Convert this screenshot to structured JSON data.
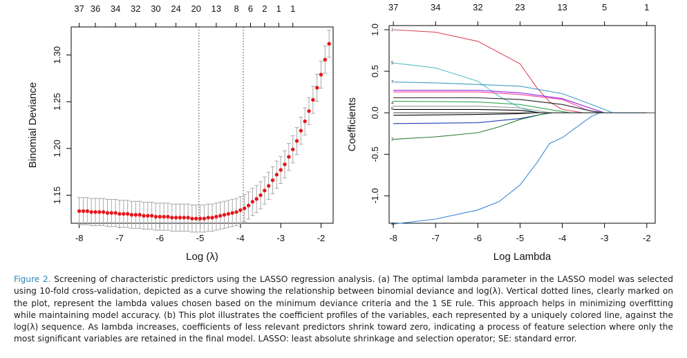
{
  "chart_data": [
    {
      "type": "scatter",
      "panel": "a",
      "xlabel": "Log (λ)",
      "ylabel": "Binomial Deviance",
      "xlim": [
        -8.2,
        -1.7
      ],
      "ylim": [
        1.12,
        1.33
      ],
      "xticks": [
        "-8",
        "-7",
        "-6",
        "-5",
        "-4",
        "-3",
        "-2"
      ],
      "yticks": [
        "1.15",
        "1.20",
        "1.25",
        "1.30"
      ],
      "top_ticks": [
        "37",
        "36",
        "34",
        "32",
        "30",
        "24",
        "20",
        "13",
        "8",
        "6",
        "2",
        "1",
        "1"
      ],
      "top_tick_x": [
        -8.0,
        -7.6,
        -7.1,
        -6.6,
        -6.1,
        -5.6,
        -5.1,
        -4.6,
        -4.1,
        -3.75,
        -3.4,
        -3.05,
        -2.7
      ],
      "vlines_x": [
        -5.03,
        -3.93
      ],
      "point_color": "#e8161c",
      "errorbar_color": "#a8a8a8",
      "note": "series: x = logLambda, y = mean deviance, e = error half-width",
      "series": [
        {
          "x": -8.0,
          "y": 1.133,
          "e": 0.0145
        },
        {
          "x": -7.9,
          "y": 1.133,
          "e": 0.0145
        },
        {
          "x": -7.8,
          "y": 1.133,
          "e": 0.0145
        },
        {
          "x": -7.7,
          "y": 1.132,
          "e": 0.0145
        },
        {
          "x": -7.6,
          "y": 1.132,
          "e": 0.0145
        },
        {
          "x": -7.5,
          "y": 1.132,
          "e": 0.0145
        },
        {
          "x": -7.4,
          "y": 1.132,
          "e": 0.0145
        },
        {
          "x": -7.3,
          "y": 1.131,
          "e": 0.0145
        },
        {
          "x": -7.2,
          "y": 1.131,
          "e": 0.0145
        },
        {
          "x": -7.1,
          "y": 1.131,
          "e": 0.0145
        },
        {
          "x": -7.0,
          "y": 1.13,
          "e": 0.0145
        },
        {
          "x": -6.9,
          "y": 1.13,
          "e": 0.0145
        },
        {
          "x": -6.8,
          "y": 1.13,
          "e": 0.0145
        },
        {
          "x": -6.7,
          "y": 1.129,
          "e": 0.0145
        },
        {
          "x": -6.6,
          "y": 1.129,
          "e": 0.0145
        },
        {
          "x": -6.5,
          "y": 1.129,
          "e": 0.0145
        },
        {
          "x": -6.4,
          "y": 1.128,
          "e": 0.0145
        },
        {
          "x": -6.3,
          "y": 1.128,
          "e": 0.0145
        },
        {
          "x": -6.2,
          "y": 1.128,
          "e": 0.0145
        },
        {
          "x": -6.1,
          "y": 1.127,
          "e": 0.0145
        },
        {
          "x": -6.0,
          "y": 1.127,
          "e": 0.0145
        },
        {
          "x": -5.9,
          "y": 1.127,
          "e": 0.0145
        },
        {
          "x": -5.8,
          "y": 1.127,
          "e": 0.0145
        },
        {
          "x": -5.7,
          "y": 1.126,
          "e": 0.0145
        },
        {
          "x": -5.6,
          "y": 1.126,
          "e": 0.0145
        },
        {
          "x": -5.5,
          "y": 1.126,
          "e": 0.0145
        },
        {
          "x": -5.4,
          "y": 1.126,
          "e": 0.0145
        },
        {
          "x": -5.3,
          "y": 1.126,
          "e": 0.0145
        },
        {
          "x": -5.2,
          "y": 1.125,
          "e": 0.0145
        },
        {
          "x": -5.1,
          "y": 1.125,
          "e": 0.0145
        },
        {
          "x": -5.0,
          "y": 1.125,
          "e": 0.0145
        },
        {
          "x": -4.9,
          "y": 1.125,
          "e": 0.0145
        },
        {
          "x": -4.8,
          "y": 1.126,
          "e": 0.0145
        },
        {
          "x": -4.7,
          "y": 1.126,
          "e": 0.0145
        },
        {
          "x": -4.6,
          "y": 1.127,
          "e": 0.0145
        },
        {
          "x": -4.5,
          "y": 1.128,
          "e": 0.0145
        },
        {
          "x": -4.4,
          "y": 1.129,
          "e": 0.0145
        },
        {
          "x": -4.3,
          "y": 1.13,
          "e": 0.0145
        },
        {
          "x": -4.2,
          "y": 1.131,
          "e": 0.0145
        },
        {
          "x": -4.1,
          "y": 1.132,
          "e": 0.0145
        },
        {
          "x": -4.0,
          "y": 1.134,
          "e": 0.0145
        },
        {
          "x": -3.9,
          "y": 1.136,
          "e": 0.0145
        },
        {
          "x": -3.8,
          "y": 1.139,
          "e": 0.0145
        },
        {
          "x": -3.7,
          "y": 1.143,
          "e": 0.0145
        },
        {
          "x": -3.6,
          "y": 1.146,
          "e": 0.0145
        },
        {
          "x": -3.5,
          "y": 1.15,
          "e": 0.0145
        },
        {
          "x": -3.4,
          "y": 1.155,
          "e": 0.0145
        },
        {
          "x": -3.3,
          "y": 1.16,
          "e": 0.0145
        },
        {
          "x": -3.2,
          "y": 1.166,
          "e": 0.0145
        },
        {
          "x": -3.1,
          "y": 1.172,
          "e": 0.0145
        },
        {
          "x": -3.0,
          "y": 1.177,
          "e": 0.0145
        },
        {
          "x": -2.9,
          "y": 1.183,
          "e": 0.0145
        },
        {
          "x": -2.8,
          "y": 1.191,
          "e": 0.0145
        },
        {
          "x": -2.7,
          "y": 1.199,
          "e": 0.0145
        },
        {
          "x": -2.6,
          "y": 1.208,
          "e": 0.0145
        },
        {
          "x": -2.5,
          "y": 1.219,
          "e": 0.0145
        },
        {
          "x": -2.4,
          "y": 1.229,
          "e": 0.0145
        },
        {
          "x": -2.3,
          "y": 1.24,
          "e": 0.0145
        },
        {
          "x": -2.2,
          "y": 1.252,
          "e": 0.0145
        },
        {
          "x": -2.1,
          "y": 1.265,
          "e": 0.0145
        },
        {
          "x": -2.0,
          "y": 1.279,
          "e": 0.0145
        },
        {
          "x": -1.9,
          "y": 1.295,
          "e": 0.0145
        },
        {
          "x": -1.8,
          "y": 1.312,
          "e": 0.0145
        }
      ]
    },
    {
      "type": "line",
      "panel": "b",
      "xlabel": "Log Lambda",
      "ylabel": "Coefficients",
      "xlim": [
        -8.1,
        -1.8
      ],
      "ylim": [
        -1.33,
        1.05
      ],
      "xticks": [
        "-8",
        "-7",
        "-6",
        "-5",
        "-4",
        "-3",
        "-2"
      ],
      "yticks": [
        "-1.0",
        "-0.5",
        "0.0",
        "0.5",
        "1.0"
      ],
      "top_ticks": [
        "37",
        "34",
        "32",
        "23",
        "13",
        "5",
        "1"
      ],
      "top_tick_x": [
        -8.0,
        -7.0,
        -6.0,
        -5.0,
        -4.0,
        -3.0,
        -2.0
      ],
      "side_labels": [
        "2",
        "5",
        "7",
        "4",
        "6",
        "3",
        "4"
      ],
      "series": [
        {
          "color": "#d94a5a",
          "points": [
            [
              -8.0,
              1.0
            ],
            [
              -7.0,
              0.97
            ],
            [
              -6.0,
              0.86
            ],
            [
              -5.0,
              0.59
            ],
            [
              -4.6,
              0.3
            ],
            [
              -4.3,
              0.13
            ],
            [
              -4.0,
              0.04
            ],
            [
              -3.5,
              0.0
            ],
            [
              -2.0,
              0.0
            ]
          ]
        },
        {
          "color": "#5ac0cc",
          "points": [
            [
              -8.0,
              0.6
            ],
            [
              -7.0,
              0.54
            ],
            [
              -6.0,
              0.38
            ],
            [
              -5.5,
              0.2
            ],
            [
              -5.0,
              0.06
            ],
            [
              -4.6,
              0.0
            ],
            [
              -2.0,
              0.0
            ]
          ]
        },
        {
          "color": "#3c9ec0",
          "points": [
            [
              -8.0,
              0.37
            ],
            [
              -7.0,
              0.36
            ],
            [
              -6.0,
              0.34
            ],
            [
              -5.0,
              0.32
            ],
            [
              -4.0,
              0.23
            ],
            [
              -3.2,
              0.08
            ],
            [
              -2.8,
              0.0
            ],
            [
              -2.0,
              0.0
            ]
          ]
        },
        {
          "color": "#8a2be2",
          "points": [
            [
              -8.0,
              0.27
            ],
            [
              -6.0,
              0.27
            ],
            [
              -5.0,
              0.24
            ],
            [
              -4.0,
              0.17
            ],
            [
              -3.3,
              0.05
            ],
            [
              -3.0,
              0.0
            ],
            [
              -2.0,
              0.0
            ]
          ]
        },
        {
          "color": "#ff3fa0",
          "points": [
            [
              -8.0,
              0.25
            ],
            [
              -6.0,
              0.25
            ],
            [
              -5.0,
              0.22
            ],
            [
              -4.0,
              0.16
            ],
            [
              -3.4,
              0.03
            ],
            [
              -3.1,
              0.0
            ],
            [
              -2.0,
              0.0
            ]
          ]
        },
        {
          "color": "#222222",
          "points": [
            [
              -8.0,
              0.18
            ],
            [
              -6.0,
              0.18
            ],
            [
              -5.0,
              0.16
            ],
            [
              -4.0,
              0.1
            ],
            [
              -3.3,
              0.02
            ],
            [
              -3.0,
              0.0
            ],
            [
              -2.0,
              0.0
            ]
          ]
        },
        {
          "color": "#2fa84f",
          "points": [
            [
              -8.0,
              0.14
            ],
            [
              -6.0,
              0.13
            ],
            [
              -5.0,
              0.1
            ],
            [
              -4.2,
              0.03
            ],
            [
              -3.8,
              0.0
            ],
            [
              -2.0,
              0.0
            ]
          ]
        },
        {
          "color": "#999999",
          "points": [
            [
              -8.0,
              0.08
            ],
            [
              -6.0,
              0.08
            ],
            [
              -5.0,
              0.06
            ],
            [
              -4.4,
              0.01
            ],
            [
              -4.2,
              0.0
            ],
            [
              -2.0,
              0.0
            ]
          ]
        },
        {
          "color": "#000000",
          "points": [
            [
              -8.0,
              0.04
            ],
            [
              -6.0,
              0.04
            ],
            [
              -5.0,
              0.03
            ],
            [
              -4.5,
              0.0
            ],
            [
              -2.0,
              0.0
            ]
          ]
        },
        {
          "color": "#000000",
          "points": [
            [
              -8.0,
              -0.03
            ],
            [
              -6.0,
              -0.02
            ],
            [
              -5.0,
              -0.01
            ],
            [
              -4.6,
              0.0
            ],
            [
              -2.0,
              0.0
            ]
          ]
        },
        {
          "color": "#1f3fae",
          "points": [
            [
              -8.0,
              -0.13
            ],
            [
              -6.0,
              -0.12
            ],
            [
              -5.0,
              -0.07
            ],
            [
              -4.3,
              0.0
            ],
            [
              -2.0,
              0.0
            ]
          ]
        },
        {
          "color": "#2e7d32",
          "points": [
            [
              -8.0,
              -0.32
            ],
            [
              -7.0,
              -0.29
            ],
            [
              -6.0,
              -0.24
            ],
            [
              -5.5,
              -0.17
            ],
            [
              -5.0,
              -0.08
            ],
            [
              -4.5,
              -0.02
            ],
            [
              -4.2,
              0.0
            ],
            [
              -2.0,
              0.0
            ]
          ]
        },
        {
          "color": "#3a89d6",
          "points": [
            [
              -8.0,
              -1.34
            ],
            [
              -7.0,
              -1.28
            ],
            [
              -6.0,
              -1.17
            ],
            [
              -5.5,
              -1.07
            ],
            [
              -5.0,
              -0.87
            ],
            [
              -4.6,
              -0.6
            ],
            [
              -4.3,
              -0.37
            ],
            [
              -4.0,
              -0.3
            ],
            [
              -3.6,
              -0.15
            ],
            [
              -3.3,
              -0.04
            ],
            [
              -3.1,
              0.0
            ],
            [
              -2.0,
              0.0
            ]
          ]
        },
        {
          "color": "#555555",
          "points": [
            [
              -8.0,
              0.0
            ],
            [
              -1.8,
              0.0
            ]
          ]
        }
      ]
    }
  ],
  "caption": {
    "label": "Figure 2.",
    "text": " Screening of characteristic predictors using the LASSO regression analysis. (a) The optimal lambda parameter in the LASSO model was selected using 10-fold cross-validation, depicted as a curve showing the relationship between binomial deviance and log(λ). Vertical dotted lines, clearly marked on the plot, represent the lambda values chosen based on the minimum deviance criteria and the 1 SE rule. This approach helps in minimizing overfitting while maintaining model accuracy. (b) This plot illustrates the coefficient profiles of the variables, each represented by a uniquely colored line, against the log(λ) sequence. As lambda increases, coefficients of less relevant predictors shrink toward zero, indicating a process of feature selection where only the most significant variables are retained in the final model. LASSO: least absolute shrinkage and selection operator; SE: standard error."
  }
}
